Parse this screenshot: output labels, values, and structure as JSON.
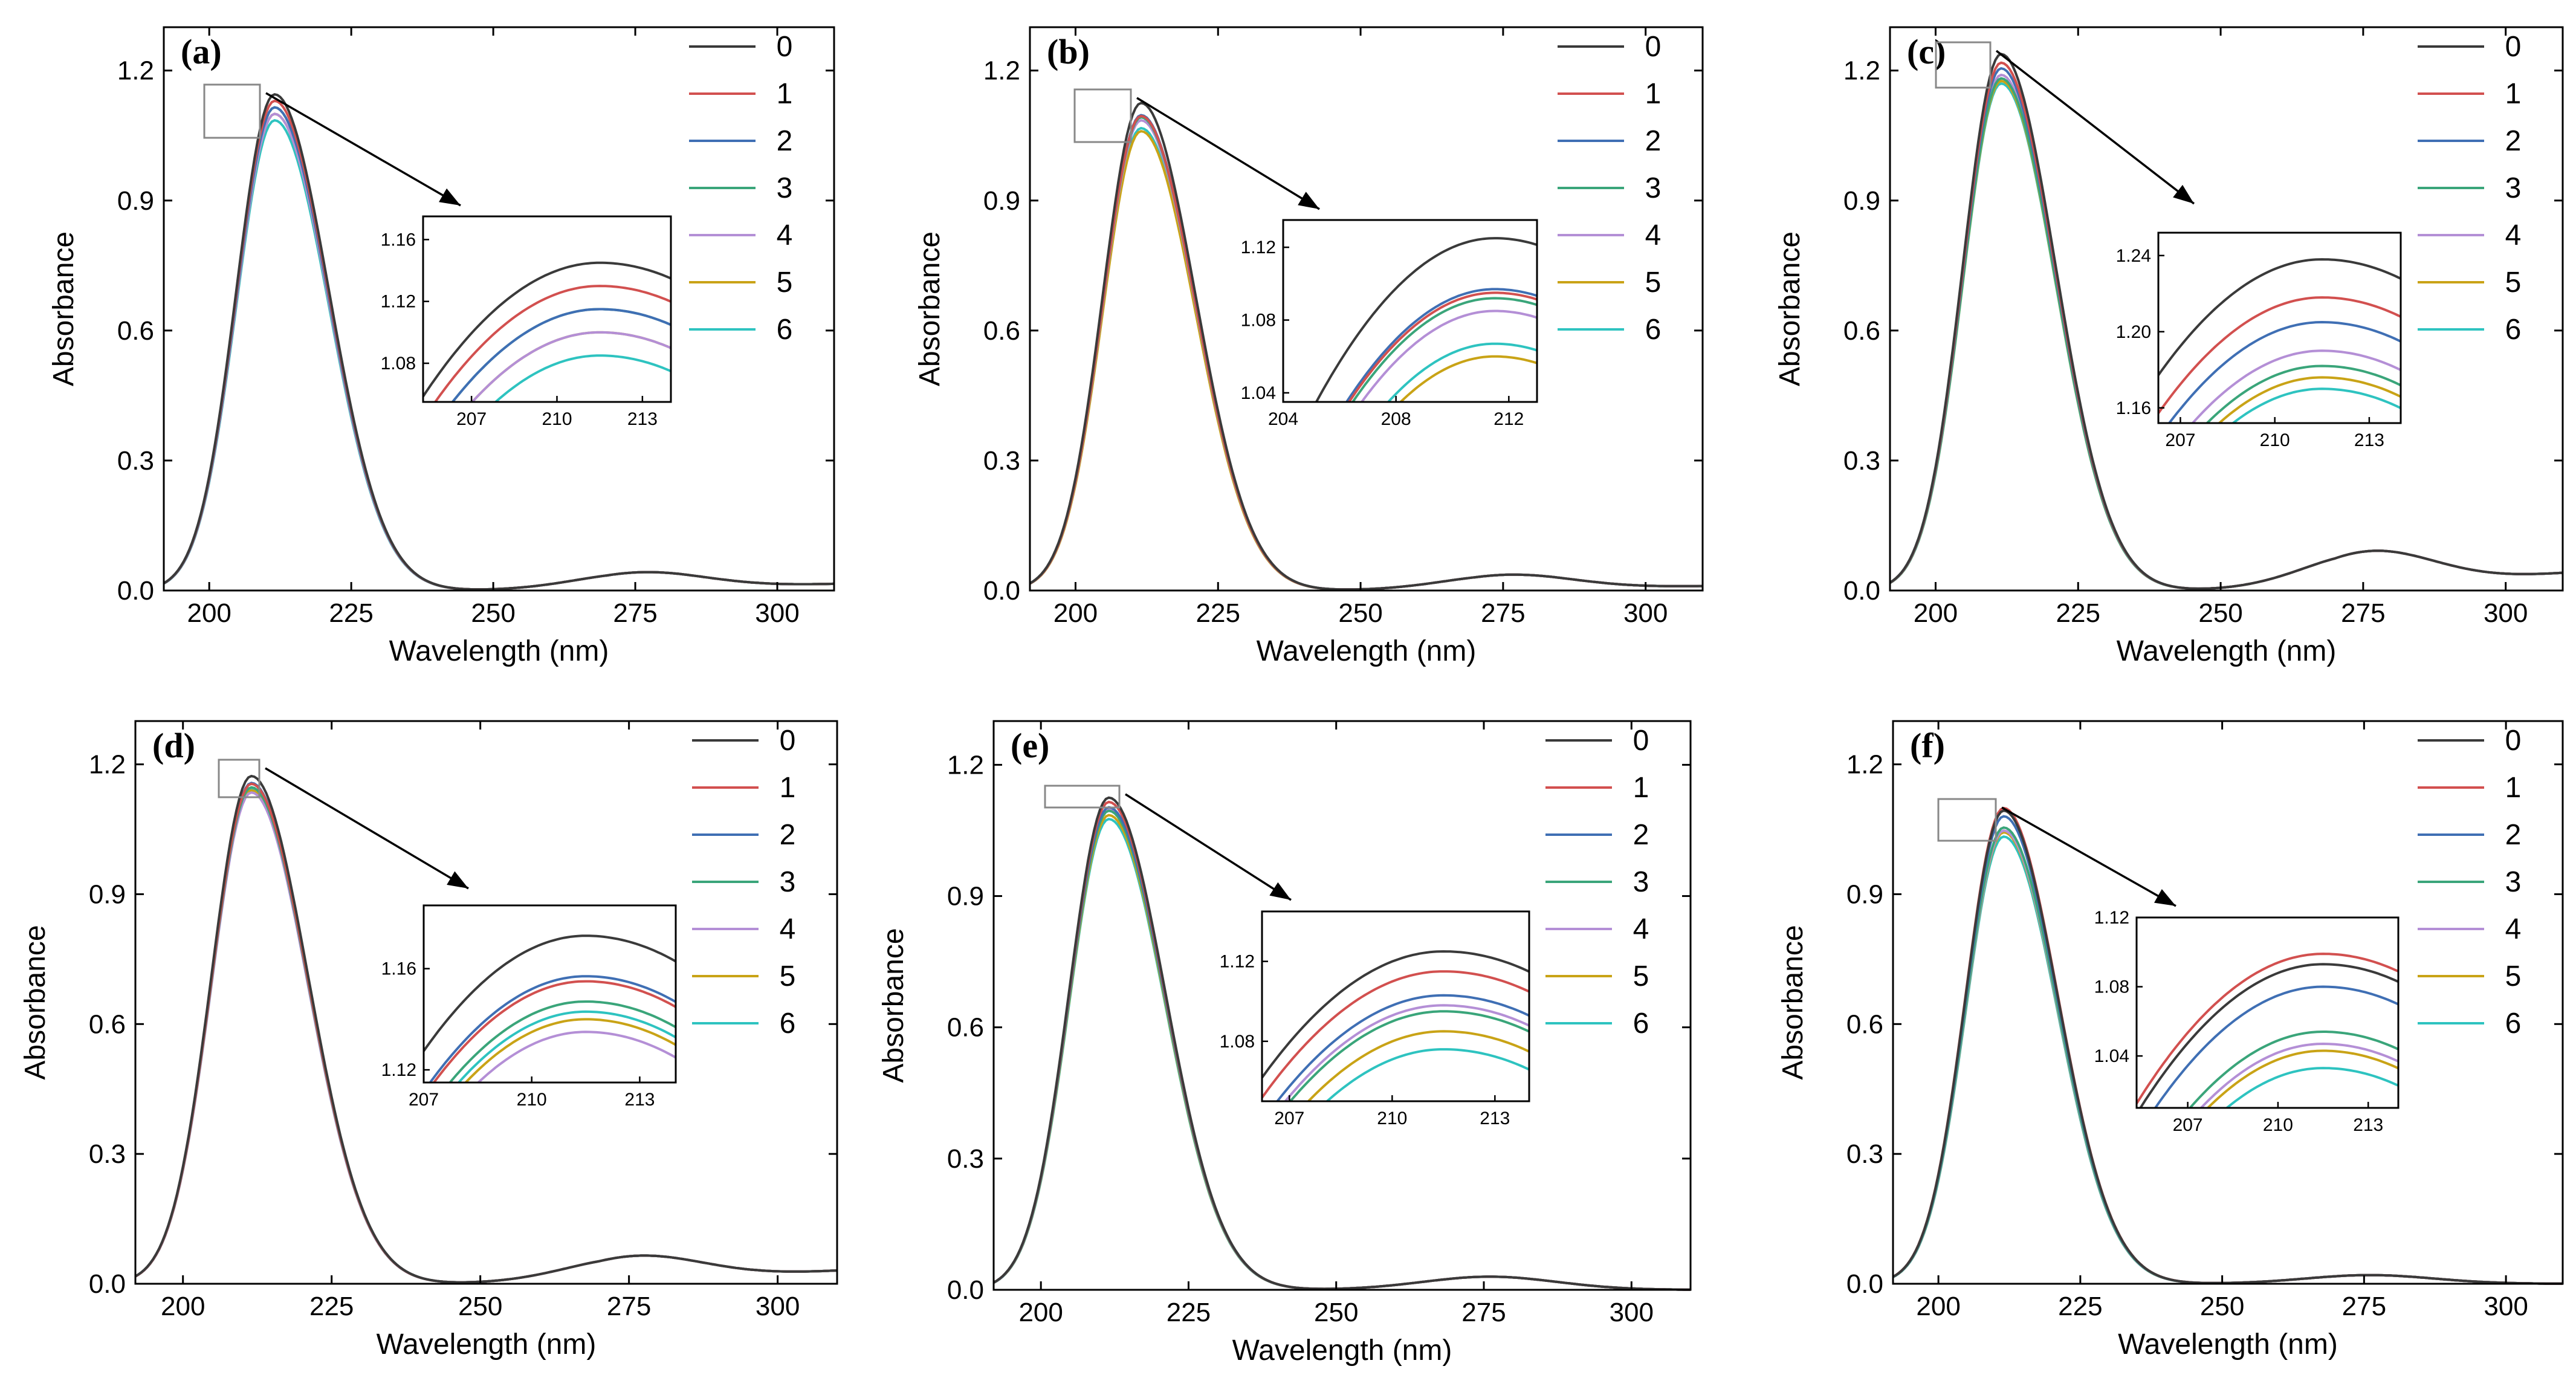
{
  "colors": [
    "#3a3a3a",
    "#d2504f",
    "#3f6fb4",
    "#3aa57a",
    "#b48fd6",
    "#c9a316",
    "#2ec3c0"
  ],
  "chart_data": [
    {
      "type": "line",
      "label": "(a)",
      "xlabel": "Wavelength (nm)",
      "ylabel": "Absorbance",
      "xlim": [
        192,
        310
      ],
      "ylim": [
        0,
        1.3
      ],
      "xticks": [
        "200",
        "225",
        "250",
        "275",
        "300"
      ],
      "yticks": [
        "0.0",
        "0.3",
        "0.6",
        "0.9",
        "1.2"
      ],
      "legend": [
        "0",
        "1",
        "2",
        "3",
        "4",
        "5",
        "6"
      ],
      "peaks": [
        1.145,
        1.13,
        1.115,
        1.115,
        1.1,
        1.1,
        1.085
      ],
      "tail": 0.04,
      "end": 0.015,
      "inset": {
        "xlim": [
          205.3,
          214
        ],
        "ylim": [
          1.055,
          1.175
        ],
        "xticks": [
          "207",
          "210",
          "213"
        ],
        "yticks": [
          "1.08",
          "1.12",
          "1.16"
        ]
      }
    },
    {
      "type": "line",
      "label": "(b)",
      "xlabel": "Wavelength (nm)",
      "ylabel": "Absorbance",
      "xlim": [
        192,
        310
      ],
      "ylim": [
        0,
        1.3
      ],
      "xticks": [
        "200",
        "225",
        "250",
        "275",
        "300"
      ],
      "yticks": [
        "0.0",
        "0.3",
        "0.6",
        "0.9",
        "1.2"
      ],
      "legend": [
        "0",
        "1",
        "2",
        "3",
        "4",
        "5",
        "6"
      ],
      "peaks": [
        1.125,
        1.095,
        1.097,
        1.092,
        1.085,
        1.06,
        1.067
      ],
      "tail": 0.035,
      "end": 0.01,
      "inset": {
        "xlim": [
          204,
          213
        ],
        "ylim": [
          1.035,
          1.135
        ],
        "xticks": [
          "204",
          "208",
          "212"
        ],
        "yticks": [
          "1.04",
          "1.08",
          "1.12"
        ]
      }
    },
    {
      "type": "line",
      "label": "(c)",
      "xlabel": "Wavelength (nm)",
      "ylabel": "Absorbance",
      "xlim": [
        192,
        310
      ],
      "ylim": [
        0,
        1.3
      ],
      "xticks": [
        "200",
        "225",
        "250",
        "275",
        "300"
      ],
      "yticks": [
        "0.0",
        "0.3",
        "0.6",
        "0.9",
        "1.2"
      ],
      "legend": [
        "0",
        "1",
        "2",
        "3",
        "4",
        "5",
        "6"
      ],
      "peaks": [
        1.238,
        1.218,
        1.205,
        1.182,
        1.19,
        1.176,
        1.17
      ],
      "tail": 0.085,
      "end": 0.04,
      "inset": {
        "xlim": [
          206.3,
          214
        ],
        "ylim": [
          1.152,
          1.252
        ],
        "xticks": [
          "207",
          "210",
          "213"
        ],
        "yticks": [
          "1.16",
          "1.20",
          "1.24"
        ]
      }
    },
    {
      "type": "line",
      "label": "(d)",
      "xlabel": "Wavelength (nm)",
      "ylabel": "Absorbance",
      "xlim": [
        192,
        310
      ],
      "ylim": [
        0,
        1.3
      ],
      "xticks": [
        "200",
        "225",
        "250",
        "275",
        "300"
      ],
      "yticks": [
        "0.0",
        "0.3",
        "0.6",
        "0.9",
        "1.2"
      ],
      "legend": [
        "0",
        "1",
        "2",
        "3",
        "4",
        "5",
        "6"
      ],
      "peaks": [
        1.173,
        1.155,
        1.157,
        1.147,
        1.135,
        1.14,
        1.143
      ],
      "tail": 0.06,
      "end": 0.03,
      "inset": {
        "xlim": [
          207,
          214
        ],
        "ylim": [
          1.115,
          1.185
        ],
        "xticks": [
          "207",
          "210",
          "213"
        ],
        "yticks": [
          "1.12",
          "1.16"
        ]
      }
    },
    {
      "type": "line",
      "label": "(e)",
      "xlabel": "Wavelength (nm)",
      "ylabel": "Absorbance",
      "xlim": [
        192,
        310
      ],
      "ylim": [
        0,
        1.3
      ],
      "xticks": [
        "200",
        "225",
        "250",
        "275",
        "300"
      ],
      "yticks": [
        "0.0",
        "0.3",
        "0.6",
        "0.9",
        "1.2"
      ],
      "legend": [
        "0",
        "1",
        "2",
        "3",
        "4",
        "5",
        "6"
      ],
      "peaks": [
        1.125,
        1.115,
        1.103,
        1.095,
        1.098,
        1.085,
        1.076
      ],
      "tail": 0.03,
      "end": 0.0,
      "inset": {
        "xlim": [
          206.2,
          214
        ],
        "ylim": [
          1.05,
          1.145
        ],
        "xticks": [
          "207",
          "210",
          "213"
        ],
        "yticks": [
          "1.08",
          "1.12"
        ]
      }
    },
    {
      "type": "line",
      "label": "(f)",
      "xlabel": "Wavelength (nm)",
      "ylabel": "Absorbance",
      "xlim": [
        192,
        310
      ],
      "ylim": [
        0,
        1.3
      ],
      "xticks": [
        "200",
        "225",
        "250",
        "275",
        "300"
      ],
      "yticks": [
        "0.0",
        "0.3",
        "0.6",
        "0.9",
        "1.2"
      ],
      "legend": [
        "0",
        "1",
        "2",
        "3",
        "4",
        "5",
        "6"
      ],
      "peaks": [
        1.093,
        1.099,
        1.08,
        1.054,
        1.047,
        1.043,
        1.033
      ],
      "tail": 0.02,
      "end": 0.0,
      "inset": {
        "xlim": [
          205.3,
          214
        ],
        "ylim": [
          1.01,
          1.12
        ],
        "xticks": [
          "207",
          "210",
          "213"
        ],
        "yticks": [
          "1.04",
          "1.08",
          "1.12"
        ]
      }
    }
  ]
}
